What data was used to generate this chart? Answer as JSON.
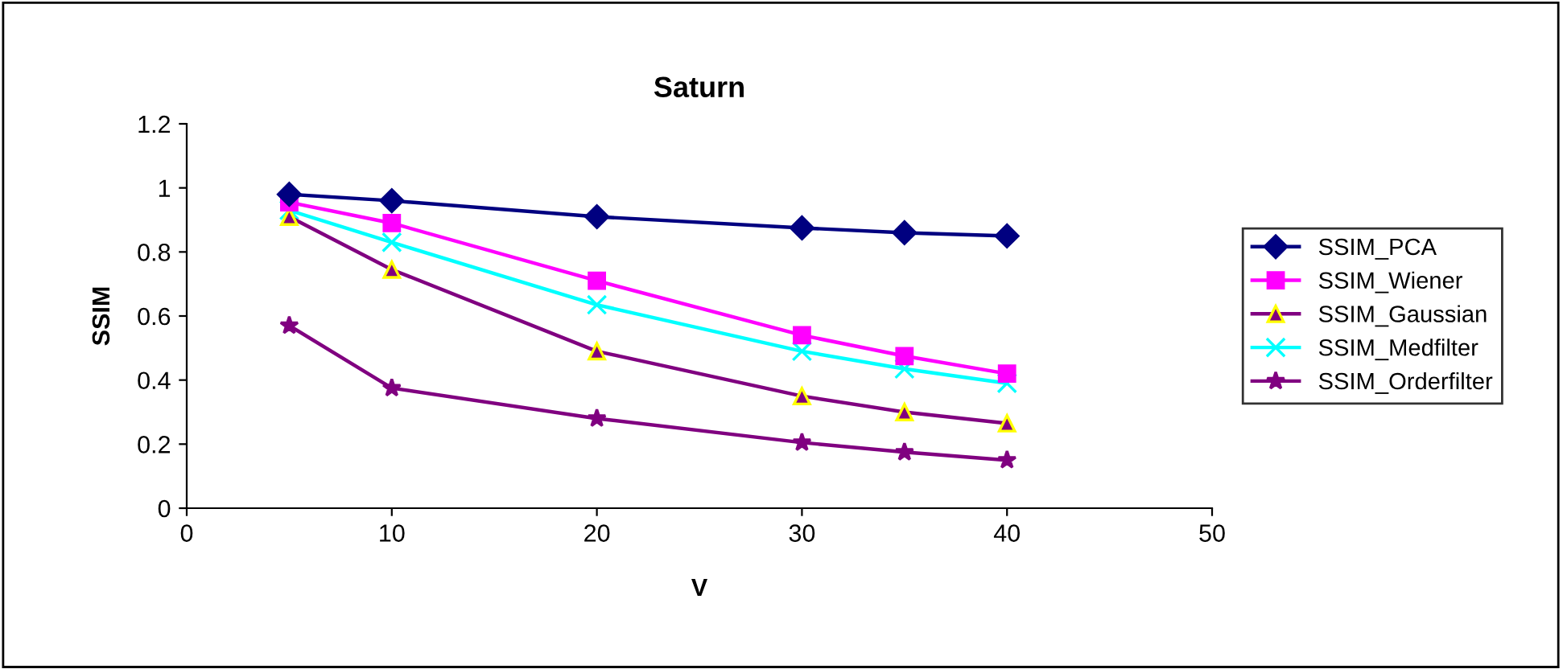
{
  "chart_data": {
    "type": "line",
    "title": "Saturn",
    "xlabel": "V",
    "ylabel": "SSIM",
    "x": [
      5,
      10,
      20,
      30,
      35,
      40
    ],
    "series": [
      {
        "name": "SSIM_PCA",
        "color": "#000080",
        "marker": "diamond",
        "values": [
          0.98,
          0.96,
          0.91,
          0.875,
          0.86,
          0.85
        ]
      },
      {
        "name": "SSIM_Wiener",
        "color": "#ff00ff",
        "marker": "square",
        "values": [
          0.955,
          0.89,
          0.71,
          0.54,
          0.475,
          0.42
        ]
      },
      {
        "name": "SSIM_Gaussian",
        "color": "#800080",
        "marker": "triangle",
        "values": [
          0.91,
          0.745,
          0.49,
          0.35,
          0.3,
          0.265
        ]
      },
      {
        "name": "SSIM_Medfilter",
        "color": "#00ffff",
        "marker": "cross",
        "values": [
          0.93,
          0.83,
          0.635,
          0.49,
          0.435,
          0.39
        ]
      },
      {
        "name": "SSIM_Orderfilter",
        "color": "#800080",
        "marker": "star",
        "values": [
          0.57,
          0.375,
          0.28,
          0.205,
          0.175,
          0.15
        ]
      }
    ],
    "xlim": [
      0,
      50
    ],
    "xticks": [
      0,
      10,
      20,
      30,
      40,
      50
    ],
    "ylim": [
      0,
      1.2
    ],
    "yticks": [
      0,
      0.2,
      0.4,
      0.6,
      0.8,
      1,
      1.2
    ],
    "grid": false,
    "legend": "right",
    "line_style": "solid"
  }
}
